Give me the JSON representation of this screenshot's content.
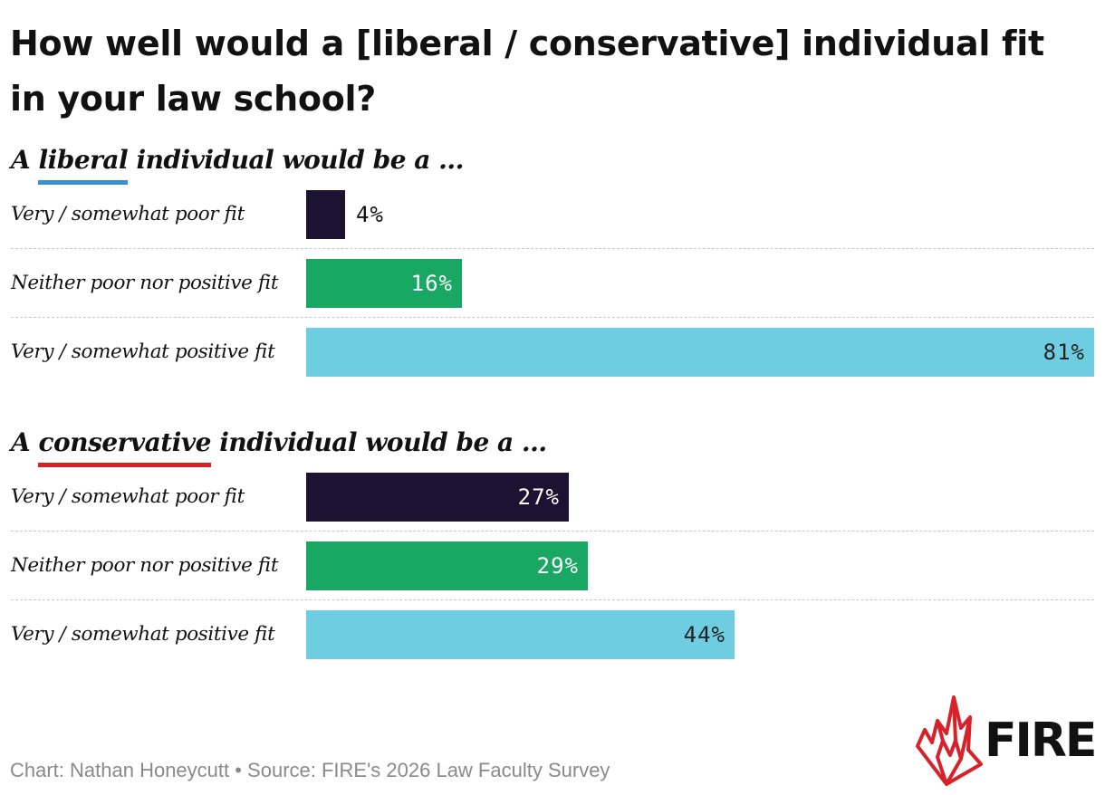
{
  "title": "How well would a [liberal / conservative] individual fit in your law school?",
  "credit": "Chart: Nathan Honeycutt • Source: FIRE's 2026 Law Faculty Survey",
  "logo": {
    "text": "FIRE",
    "icon": "flame-icon",
    "color": "#d8222a"
  },
  "colors": {
    "poor": "#1c1333",
    "neither": "#18a863",
    "positive": "#6fcde1",
    "liberal_underline": "#3a8fd0",
    "conservative_underline": "#d8222a"
  },
  "chart_data": [
    {
      "type": "bar",
      "orientation": "horizontal",
      "title": {
        "prefix": "A",
        "keyword": "liberal",
        "suffix": "individual would be a ..."
      },
      "categories": [
        "Very / somewhat poor fit",
        "Neither poor nor positive fit",
        "Very / somewhat positive fit"
      ],
      "values": [
        4,
        16,
        81
      ],
      "labels": [
        "4%",
        "16%",
        "81%"
      ],
      "unit": "%",
      "xlim": [
        0,
        81
      ]
    },
    {
      "type": "bar",
      "orientation": "horizontal",
      "title": {
        "prefix": "A",
        "keyword": "conservative",
        "suffix": "individual would be a ..."
      },
      "categories": [
        "Very / somewhat poor fit",
        "Neither poor nor positive fit",
        "Very / somewhat positive fit"
      ],
      "values": [
        27,
        29,
        44
      ],
      "labels": [
        "27%",
        "29%",
        "44%"
      ],
      "unit": "%",
      "xlim": [
        0,
        81
      ]
    }
  ]
}
